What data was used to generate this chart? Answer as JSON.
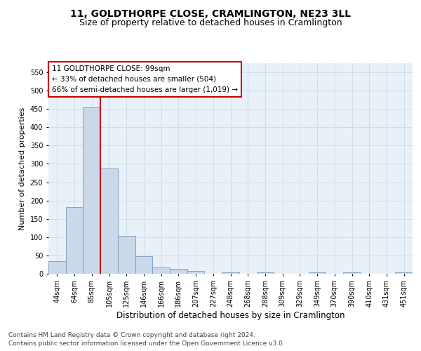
{
  "title": "11, GOLDTHORPE CLOSE, CRAMLINGTON, NE23 3LL",
  "subtitle": "Size of property relative to detached houses in Cramlington",
  "xlabel": "Distribution of detached houses by size in Cramlington",
  "ylabel": "Number of detached properties",
  "categories": [
    "44sqm",
    "64sqm",
    "85sqm",
    "105sqm",
    "125sqm",
    "146sqm",
    "166sqm",
    "186sqm",
    "207sqm",
    "227sqm",
    "248sqm",
    "268sqm",
    "288sqm",
    "309sqm",
    "329sqm",
    "349sqm",
    "370sqm",
    "390sqm",
    "410sqm",
    "431sqm",
    "451sqm"
  ],
  "values": [
    35,
    183,
    455,
    288,
    103,
    48,
    18,
    13,
    8,
    0,
    4,
    0,
    4,
    0,
    0,
    4,
    0,
    4,
    0,
    0,
    4
  ],
  "bar_color": "#cad9ea",
  "bar_edge_color": "#7799bb",
  "bar_linewidth": 0.6,
  "vline_x_index": 3,
  "vline_color": "#cc0000",
  "vline_linewidth": 1.5,
  "annotation_text": "11 GOLDTHORPE CLOSE: 99sqm\n← 33% of detached houses are smaller (504)\n66% of semi-detached houses are larger (1,019) →",
  "annotation_box_color": "#ffffff",
  "annotation_box_edgecolor": "#cc0000",
  "ylim": [
    0,
    575
  ],
  "yticks": [
    0,
    50,
    100,
    150,
    200,
    250,
    300,
    350,
    400,
    450,
    500,
    550
  ],
  "grid_color": "#d0dde8",
  "plot_background": "#e8f0f8",
  "title_fontsize": 10,
  "subtitle_fontsize": 9,
  "xlabel_fontsize": 8.5,
  "ylabel_fontsize": 8,
  "tick_fontsize": 7,
  "annotation_fontsize": 7.5,
  "footer_line1": "Contains HM Land Registry data © Crown copyright and database right 2024.",
  "footer_line2": "Contains public sector information licensed under the Open Government Licence v3.0.",
  "footer_fontsize": 6.5
}
